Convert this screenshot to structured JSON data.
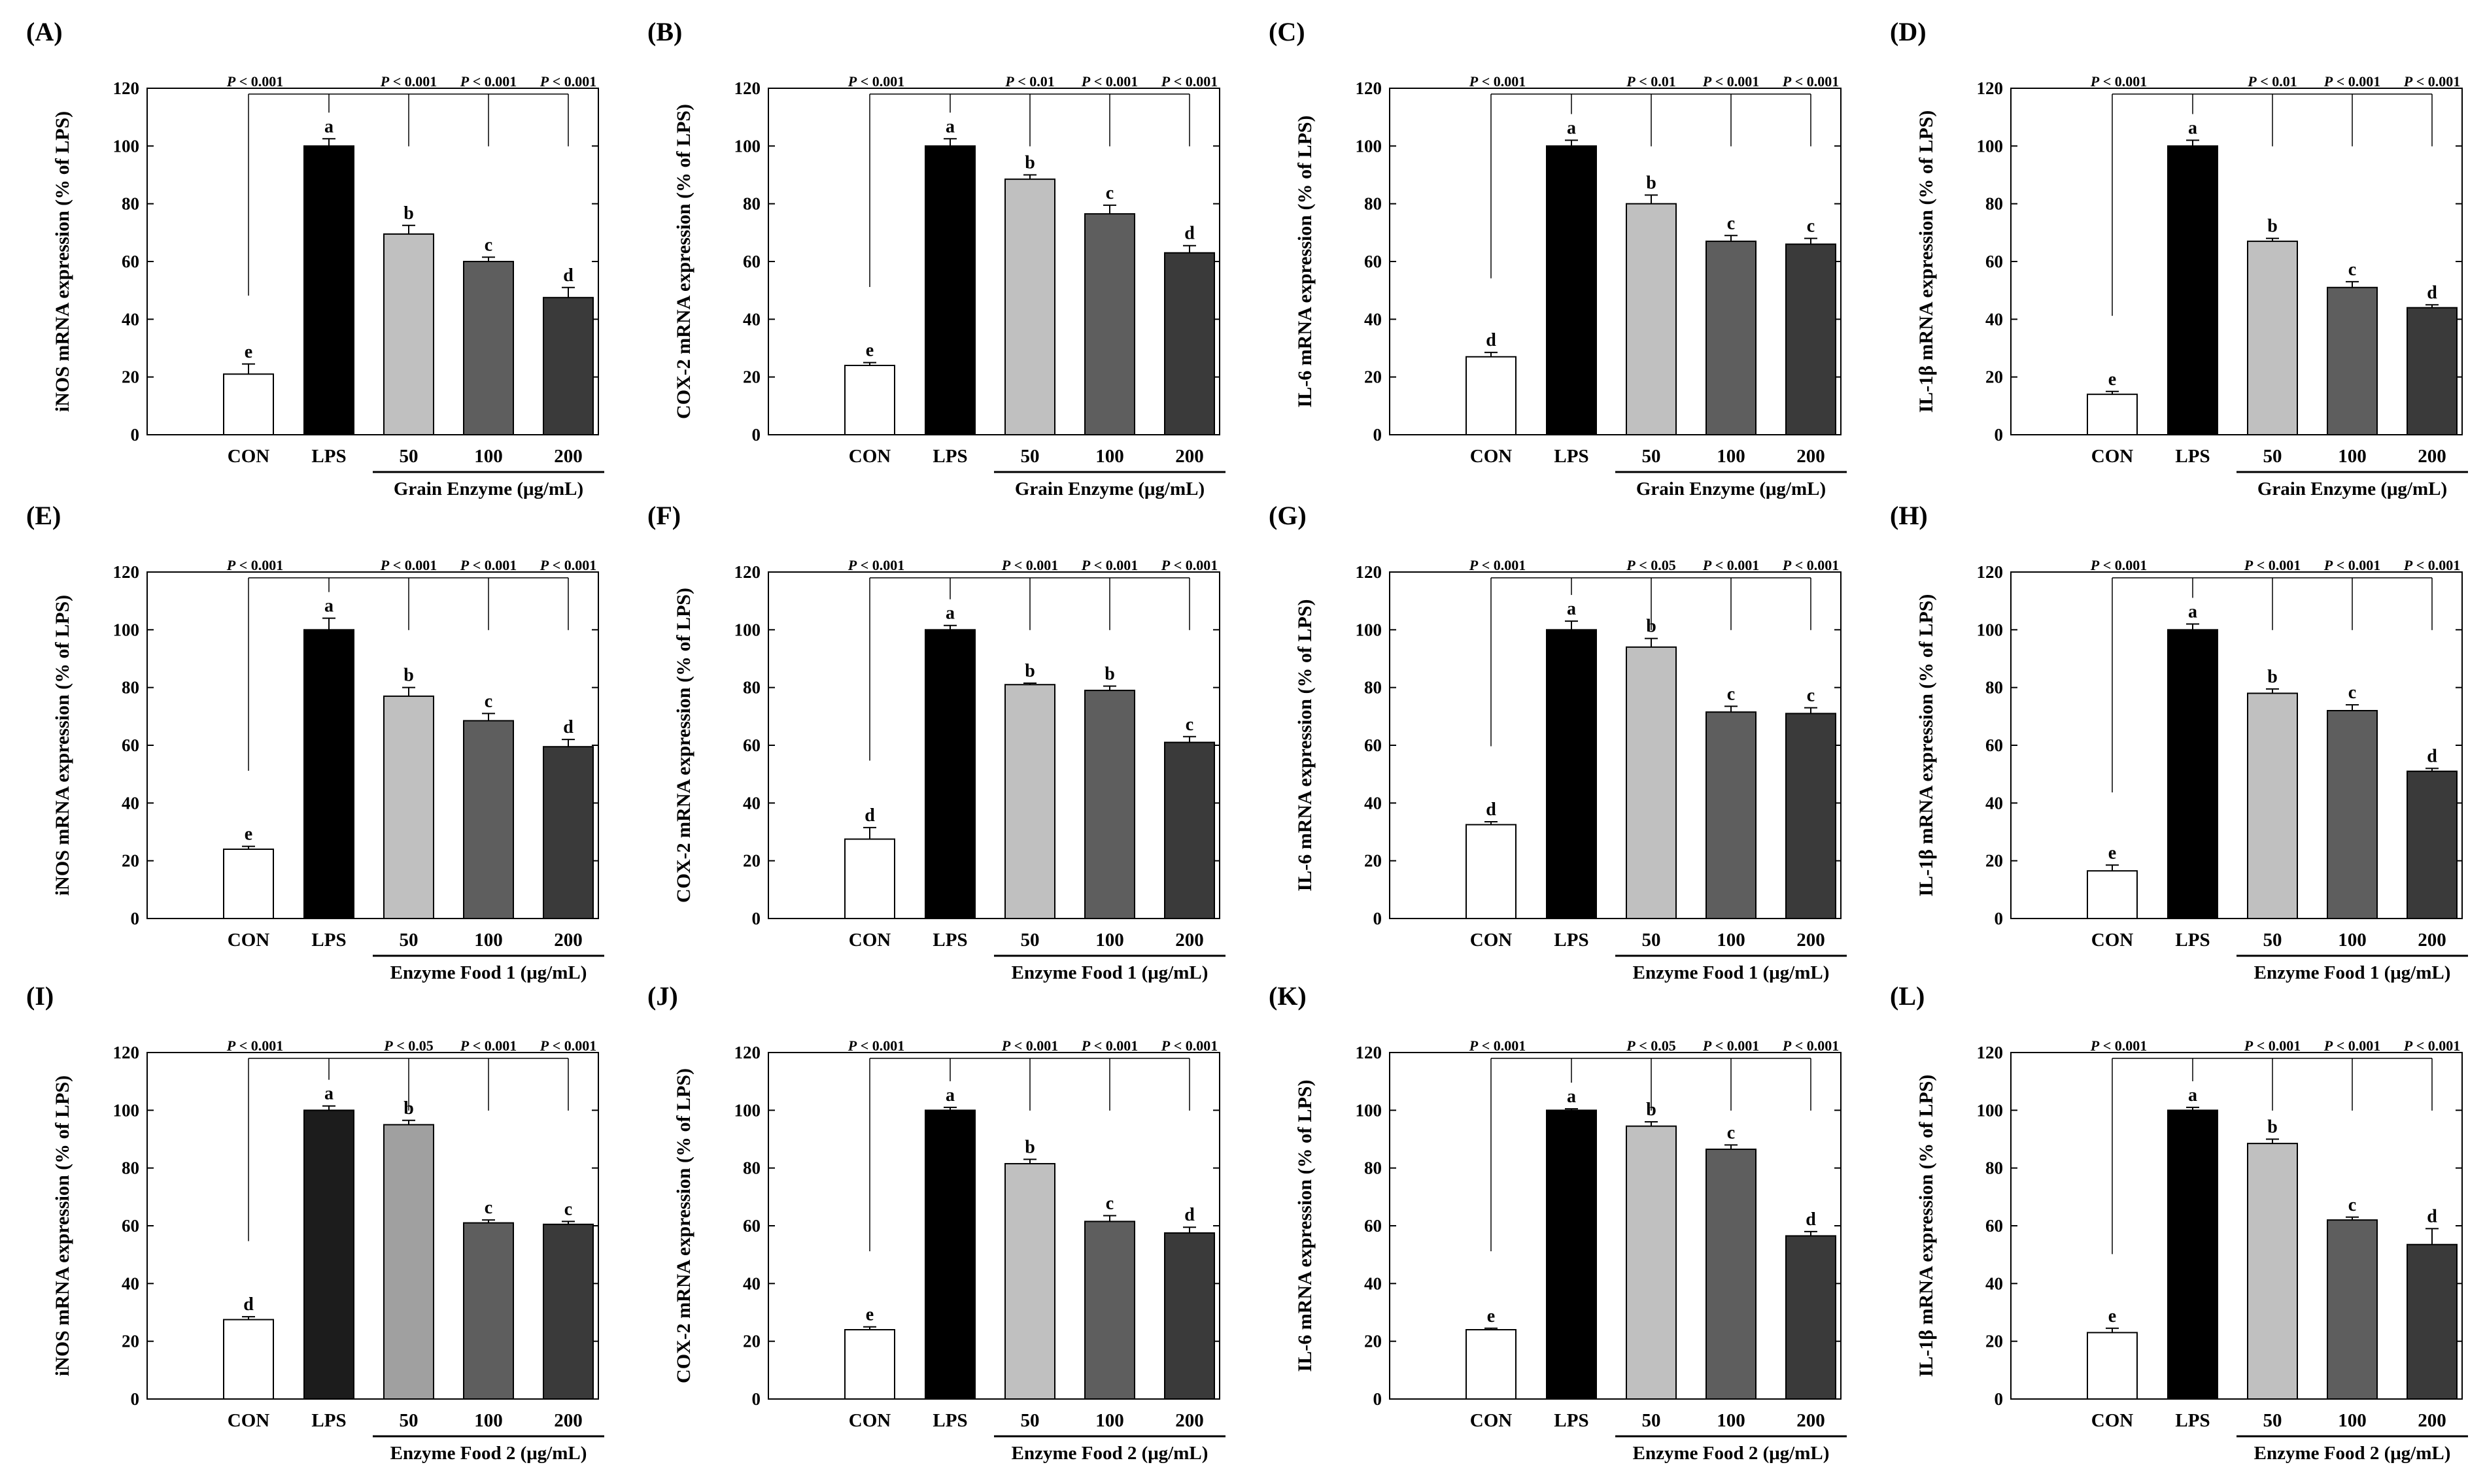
{
  "figure": {
    "significance_marker_prefix": "P",
    "significance_comparator": "<"
  },
  "chart_data": [
    {
      "panel_label": "(A)",
      "type": "bar",
      "ylabel": "iNOS mRNA expression (% of LPS)",
      "group_label": "Grain Enzyme (μg/mL)",
      "categories": [
        "CON",
        "LPS",
        "50",
        "100",
        "200"
      ],
      "values": [
        21,
        100,
        69.5,
        60,
        47.5
      ],
      "errors": [
        3.5,
        2.5,
        3,
        1.5,
        3.5
      ],
      "letters": [
        "e",
        "a",
        "b",
        "c",
        "d"
      ],
      "colors": [
        "#ffffff",
        "#000000",
        "#c0c0c0",
        "#5e5e5e",
        "#3a3a3a"
      ],
      "p_values": [
        "< 0.001",
        "< 0.001",
        "< 0.001",
        "< 0.001"
      ],
      "ylim": [
        0,
        120
      ],
      "yticks": [
        0,
        20,
        40,
        60,
        80,
        100,
        120
      ]
    },
    {
      "panel_label": "(B)",
      "type": "bar",
      "ylabel": "COX-2 mRNA expression (% of LPS)",
      "group_label": "Grain Enzyme (μg/mL)",
      "categories": [
        "CON",
        "LPS",
        "50",
        "100",
        "200"
      ],
      "values": [
        24,
        100,
        88.5,
        76.5,
        63
      ],
      "errors": [
        1,
        2.5,
        1.5,
        3,
        2.5
      ],
      "letters": [
        "e",
        "a",
        "b",
        "c",
        "d"
      ],
      "colors": [
        "#ffffff",
        "#000000",
        "#c0c0c0",
        "#5e5e5e",
        "#3a3a3a"
      ],
      "p_values": [
        "< 0.001",
        "< 0.01",
        "< 0.001",
        "< 0.001"
      ],
      "ylim": [
        0,
        120
      ],
      "yticks": [
        0,
        20,
        40,
        60,
        80,
        100,
        120
      ]
    },
    {
      "panel_label": "(C)",
      "type": "bar",
      "ylabel": "IL-6 mRNA expression (% of LPS)",
      "group_label": "Grain Enzyme (μg/mL)",
      "categories": [
        "CON",
        "LPS",
        "50",
        "100",
        "200"
      ],
      "values": [
        27,
        100,
        80,
        67,
        66
      ],
      "errors": [
        1.5,
        2,
        3,
        2,
        2
      ],
      "letters": [
        "d",
        "a",
        "b",
        "c",
        "c"
      ],
      "colors": [
        "#ffffff",
        "#000000",
        "#c0c0c0",
        "#5e5e5e",
        "#3a3a3a"
      ],
      "p_values": [
        "< 0.001",
        "< 0.01",
        "< 0.001",
        "< 0.001"
      ],
      "ylim": [
        0,
        120
      ],
      "yticks": [
        0,
        20,
        40,
        60,
        80,
        100,
        120
      ]
    },
    {
      "panel_label": "(D)",
      "type": "bar",
      "ylabel": "IL-1β mRNA expression (% of LPS)",
      "group_label": "Grain Enzyme (μg/mL)",
      "categories": [
        "CON",
        "LPS",
        "50",
        "100",
        "200"
      ],
      "values": [
        14,
        100,
        67,
        51,
        44
      ],
      "errors": [
        1,
        2,
        1,
        2,
        1
      ],
      "letters": [
        "e",
        "a",
        "b",
        "c",
        "d"
      ],
      "colors": [
        "#ffffff",
        "#000000",
        "#c0c0c0",
        "#5e5e5e",
        "#3a3a3a"
      ],
      "p_values": [
        "< 0.001",
        "< 0.01",
        "< 0.001",
        "< 0.001"
      ],
      "ylim": [
        0,
        120
      ],
      "yticks": [
        0,
        20,
        40,
        60,
        80,
        100,
        120
      ]
    },
    {
      "panel_label": "(E)",
      "type": "bar",
      "ylabel": "iNOS mRNA expression (% of LPS)",
      "group_label": "Enzyme Food 1 (μg/mL)",
      "categories": [
        "CON",
        "LPS",
        "50",
        "100",
        "200"
      ],
      "values": [
        24,
        100,
        77,
        68.5,
        59.5
      ],
      "errors": [
        1,
        4,
        3,
        2.5,
        2.5
      ],
      "letters": [
        "e",
        "a",
        "b",
        "c",
        "d"
      ],
      "colors": [
        "#ffffff",
        "#000000",
        "#c0c0c0",
        "#5e5e5e",
        "#3a3a3a"
      ],
      "p_values": [
        "< 0.001",
        "< 0.001",
        "< 0.001",
        "< 0.001"
      ],
      "ylim": [
        0,
        120
      ],
      "yticks": [
        0,
        20,
        40,
        60,
        80,
        100,
        120
      ]
    },
    {
      "panel_label": "(F)",
      "type": "bar",
      "ylabel": "COX-2 mRNA expression (% of LPS)",
      "group_label": "Enzyme Food 1 (μg/mL)",
      "categories": [
        "CON",
        "LPS",
        "50",
        "100",
        "200"
      ],
      "values": [
        27.5,
        100,
        81,
        79,
        61
      ],
      "errors": [
        4,
        1.5,
        0.5,
        1.5,
        2
      ],
      "letters": [
        "d",
        "a",
        "b",
        "b",
        "c"
      ],
      "colors": [
        "#ffffff",
        "#000000",
        "#c0c0c0",
        "#5e5e5e",
        "#3a3a3a"
      ],
      "p_values": [
        "< 0.001",
        "< 0.001",
        "< 0.001",
        "< 0.001"
      ],
      "ylim": [
        0,
        120
      ],
      "yticks": [
        0,
        20,
        40,
        60,
        80,
        100,
        120
      ]
    },
    {
      "panel_label": "(G)",
      "type": "bar",
      "ylabel": "IL-6 mRNA expression (% of LPS)",
      "group_label": "Enzyme Food 1 (μg/mL)",
      "categories": [
        "CON",
        "LPS",
        "50",
        "100",
        "200"
      ],
      "values": [
        32.5,
        100,
        94,
        71.5,
        71
      ],
      "errors": [
        1,
        3,
        3,
        2,
        2
      ],
      "letters": [
        "d",
        "a",
        "b",
        "c",
        "c"
      ],
      "colors": [
        "#ffffff",
        "#000000",
        "#c0c0c0",
        "#5e5e5e",
        "#3a3a3a"
      ],
      "p_values": [
        "< 0.001",
        "< 0.05",
        "< 0.001",
        "< 0.001"
      ],
      "ylim": [
        0,
        120
      ],
      "yticks": [
        0,
        20,
        40,
        60,
        80,
        100,
        120
      ]
    },
    {
      "panel_label": "(H)",
      "type": "bar",
      "ylabel": "IL-1β mRNA expression (% of LPS)",
      "group_label": "Enzyme Food 1 (μg/mL)",
      "categories": [
        "CON",
        "LPS",
        "50",
        "100",
        "200"
      ],
      "values": [
        16.5,
        100,
        78,
        72,
        51
      ],
      "errors": [
        2,
        2,
        1.5,
        2,
        1
      ],
      "letters": [
        "e",
        "a",
        "b",
        "c",
        "d"
      ],
      "colors": [
        "#ffffff",
        "#000000",
        "#c0c0c0",
        "#5e5e5e",
        "#3a3a3a"
      ],
      "p_values": [
        "< 0.001",
        "< 0.001",
        "< 0.001",
        "< 0.001"
      ],
      "ylim": [
        0,
        120
      ],
      "yticks": [
        0,
        20,
        40,
        60,
        80,
        100,
        120
      ]
    },
    {
      "panel_label": "(I)",
      "type": "bar",
      "ylabel": "iNOS mRNA expression (% of LPS)",
      "group_label": "Enzyme Food 2 (μg/mL)",
      "categories": [
        "CON",
        "LPS",
        "50",
        "100",
        "200"
      ],
      "values": [
        27.5,
        100,
        95,
        61,
        60.5
      ],
      "errors": [
        1,
        1.5,
        1.5,
        1,
        1
      ],
      "letters": [
        "d",
        "a",
        "b",
        "c",
        "c"
      ],
      "colors": [
        "#ffffff",
        "#1c1c1c",
        "#a0a0a0",
        "#5e5e5e",
        "#3a3a3a"
      ],
      "p_values": [
        "< 0.001",
        "< 0.05",
        "< 0.001",
        "< 0.001"
      ],
      "ylim": [
        0,
        120
      ],
      "yticks": [
        0,
        20,
        40,
        60,
        80,
        100,
        120
      ]
    },
    {
      "panel_label": "(J)",
      "type": "bar",
      "ylabel": "COX-2 mRNA expression (% of LPS)",
      "group_label": "Enzyme Food 2 (μg/mL)",
      "categories": [
        "CON",
        "LPS",
        "50",
        "100",
        "200"
      ],
      "values": [
        24,
        100,
        81.5,
        61.5,
        57.5
      ],
      "errors": [
        1,
        1,
        1.5,
        2,
        2
      ],
      "letters": [
        "e",
        "a",
        "b",
        "c",
        "d"
      ],
      "colors": [
        "#ffffff",
        "#000000",
        "#c0c0c0",
        "#5e5e5e",
        "#3a3a3a"
      ],
      "p_values": [
        "< 0.001",
        "< 0.001",
        "< 0.001",
        "< 0.001"
      ],
      "ylim": [
        0,
        120
      ],
      "yticks": [
        0,
        20,
        40,
        60,
        80,
        100,
        120
      ]
    },
    {
      "panel_label": "(K)",
      "type": "bar",
      "ylabel": "IL-6 mRNA expression (% of LPS)",
      "group_label": "Enzyme Food 2 (μg/mL)",
      "categories": [
        "CON",
        "LPS",
        "50",
        "100",
        "200"
      ],
      "values": [
        24,
        100,
        94.5,
        86.5,
        56.5
      ],
      "errors": [
        0.5,
        0.5,
        1.5,
        1.5,
        1.5
      ],
      "letters": [
        "e",
        "a",
        "b",
        "c",
        "d"
      ],
      "colors": [
        "#ffffff",
        "#000000",
        "#c0c0c0",
        "#5e5e5e",
        "#3a3a3a"
      ],
      "p_values": [
        "< 0.001",
        "< 0.05",
        "< 0.001",
        "< 0.001"
      ],
      "ylim": [
        0,
        120
      ],
      "yticks": [
        0,
        20,
        40,
        60,
        80,
        100,
        120
      ]
    },
    {
      "panel_label": "(L)",
      "type": "bar",
      "ylabel": "IL-1β mRNA expression (% of LPS)",
      "group_label": "Enzyme Food 2 (μg/mL)",
      "categories": [
        "CON",
        "LPS",
        "50",
        "100",
        "200"
      ],
      "values": [
        23,
        100,
        88.5,
        62,
        53.5
      ],
      "errors": [
        1.5,
        1,
        1.5,
        1,
        5.5
      ],
      "letters": [
        "e",
        "a",
        "b",
        "c",
        "d"
      ],
      "colors": [
        "#ffffff",
        "#000000",
        "#c0c0c0",
        "#5e5e5e",
        "#3a3a3a"
      ],
      "p_values": [
        "< 0.001",
        "< 0.001",
        "< 0.001",
        "< 0.001"
      ],
      "ylim": [
        0,
        120
      ],
      "yticks": [
        0,
        20,
        40,
        60,
        80,
        100,
        120
      ]
    }
  ]
}
